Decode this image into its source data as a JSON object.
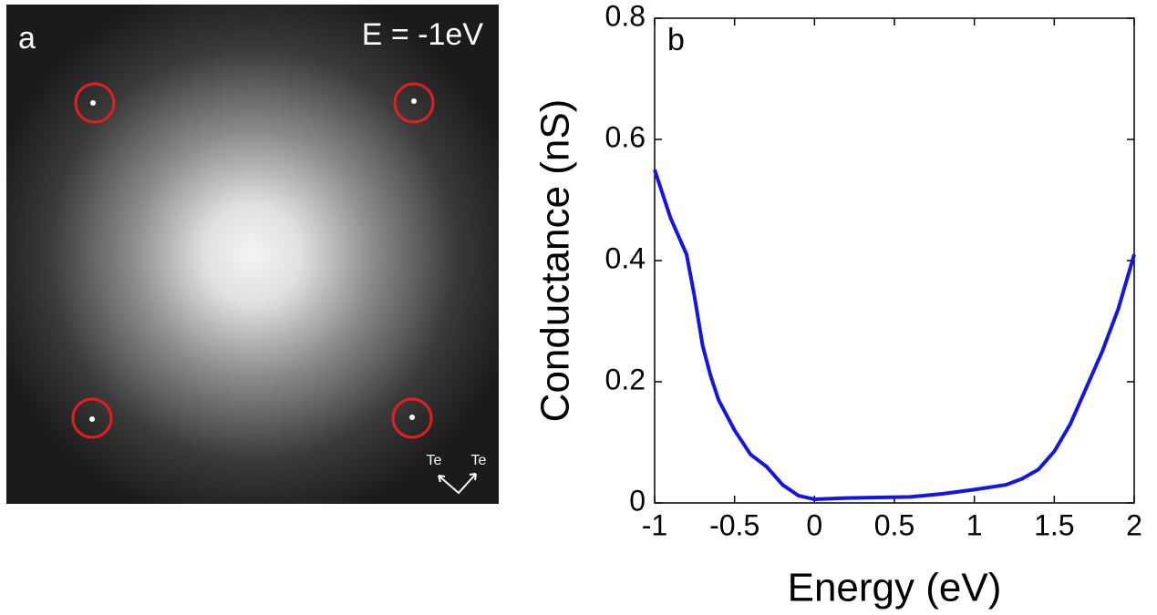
{
  "chart_data": [
    {
      "type": "image",
      "label": "a",
      "annotation": "E = -1eV",
      "arrow_labels": [
        "Te",
        "Te"
      ]
    },
    {
      "type": "line",
      "label": "b",
      "x_label": "Energy (eV)",
      "y_label": "Conductance (nS)",
      "x": [
        -1,
        -0.95,
        -0.9,
        -0.85,
        -0.8,
        -0.75,
        -0.7,
        -0.65,
        -0.6,
        -0.5,
        -0.4,
        -0.3,
        -0.2,
        -0.1,
        0,
        0.2,
        0.4,
        0.6,
        0.8,
        1.0,
        1.2,
        1.3,
        1.4,
        1.5,
        1.6,
        1.7,
        1.8,
        1.9,
        2.0
      ],
      "values": [
        0.55,
        0.51,
        0.47,
        0.44,
        0.41,
        0.34,
        0.26,
        0.21,
        0.17,
        0.12,
        0.08,
        0.06,
        0.03,
        0.012,
        0.006,
        0.008,
        0.009,
        0.01,
        0.015,
        0.022,
        0.03,
        0.04,
        0.055,
        0.085,
        0.13,
        0.19,
        0.25,
        0.32,
        0.41
      ],
      "color": "#1414e6",
      "xlim": [
        -1,
        2
      ],
      "ylim": [
        0,
        0.8
      ],
      "xticks": [
        -1,
        -0.5,
        0,
        0.5,
        1,
        1.5,
        2
      ],
      "yticks": [
        0,
        0.2,
        0.4,
        0.6,
        0.8
      ],
      "grid": false
    }
  ]
}
